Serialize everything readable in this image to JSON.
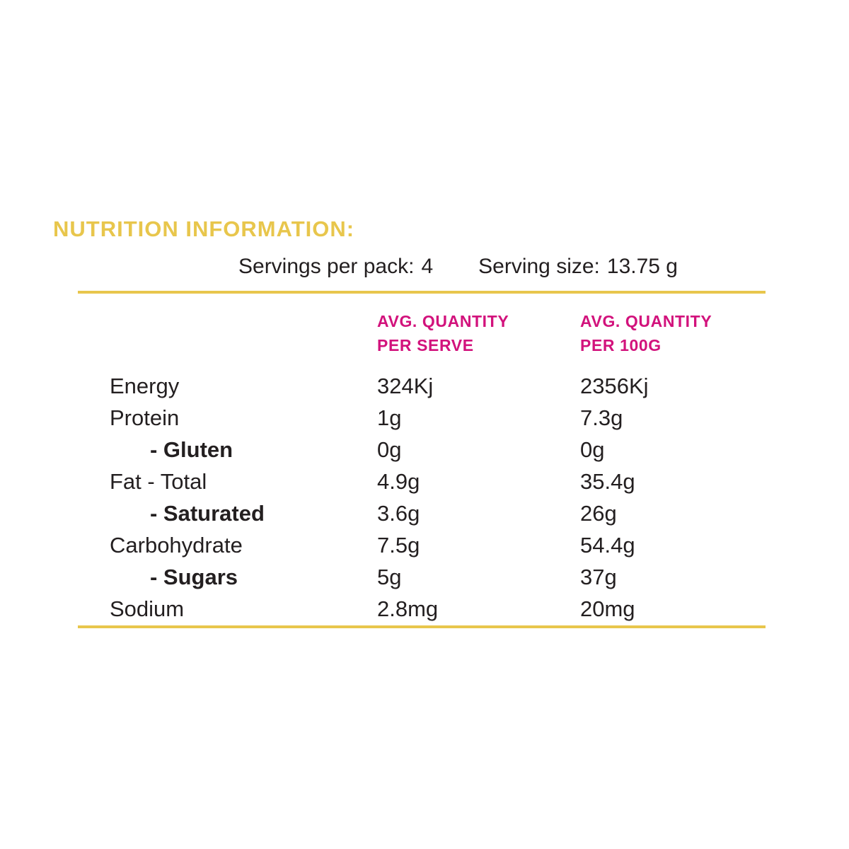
{
  "colors": {
    "accent_gold": "#e8c64c",
    "accent_magenta": "#d2127c",
    "text_black": "#231f20",
    "background": "#ffffff"
  },
  "title": "NUTRITION INFORMATION:",
  "serving_info": {
    "servings_per_pack": {
      "label": "Servings per pack:",
      "value": "4"
    },
    "serving_size": {
      "label": "Serving size:",
      "value": "13.75 g"
    }
  },
  "table": {
    "columns": [
      {
        "line1": "AVG. QUANTITY",
        "line2": "PER SERVE"
      },
      {
        "line1": "AVG. QUANTITY",
        "line2": "PER 100G"
      }
    ],
    "rows": [
      {
        "label": "Energy",
        "per_serve": "324Kj",
        "per_100g": "2356Kj",
        "sub": false
      },
      {
        "label": "Protein",
        "per_serve": "1g",
        "per_100g": "7.3g",
        "sub": false
      },
      {
        "label": "- Gluten",
        "per_serve": "0g",
        "per_100g": "0g",
        "sub": true
      },
      {
        "label": "Fat - Total",
        "per_serve": "4.9g",
        "per_100g": "35.4g",
        "sub": false
      },
      {
        "label": "- Saturated",
        "per_serve": "3.6g",
        "per_100g": "26g",
        "sub": true
      },
      {
        "label": "Carbohydrate",
        "per_serve": "7.5g",
        "per_100g": "54.4g",
        "sub": false
      },
      {
        "label": "- Sugars",
        "per_serve": "5g",
        "per_100g": "37g",
        "sub": true
      },
      {
        "label": "Sodium",
        "per_serve": "2.8mg",
        "per_100g": "20mg",
        "sub": false
      }
    ]
  }
}
